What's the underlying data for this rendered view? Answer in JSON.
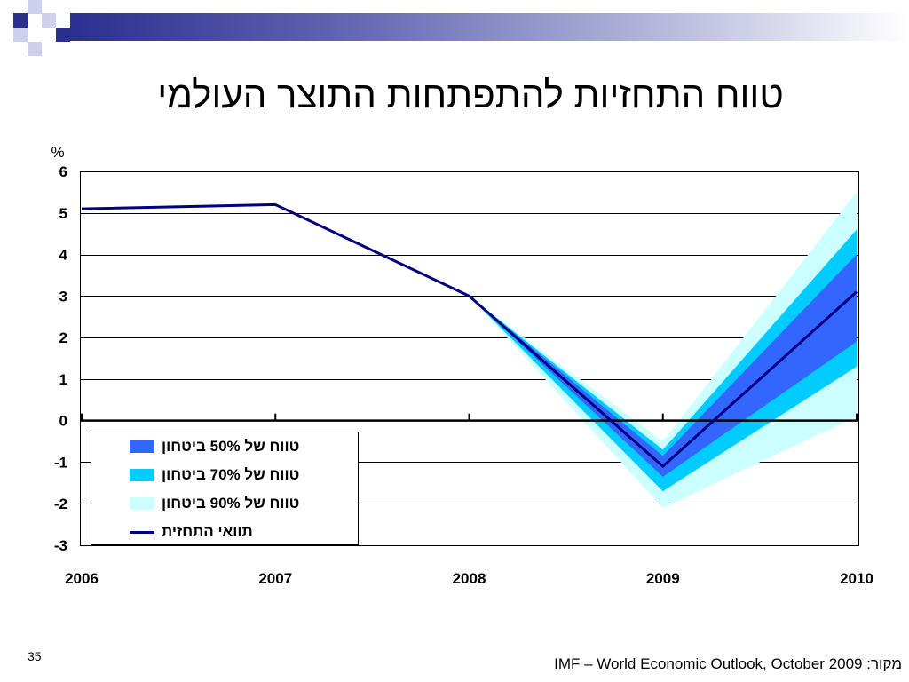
{
  "theme": {
    "accent": "#2b2f8f",
    "accent_light": "#cfd0ee"
  },
  "slide": {
    "title": "טווח התחזיות להתפתחות התוצר העולמי",
    "number": "35",
    "source": "מקור: IMF – World Economic Outlook, October 2009"
  },
  "chart_data": {
    "type": "line",
    "ylabel": "%",
    "x": [
      "2006",
      "2007",
      "2008",
      "2009",
      "2010"
    ],
    "ylim": [
      -3,
      6
    ],
    "yticks": [
      6,
      5,
      4,
      3,
      2,
      1,
      0,
      -1,
      -2,
      -3
    ],
    "grid": true,
    "legend": "bottom-left",
    "series": [
      {
        "name": "תוואי התחזית",
        "values": [
          5.1,
          5.2,
          3.0,
          -1.1,
          3.1
        ],
        "color": "#000080"
      }
    ],
    "bands": [
      {
        "name": "טווח של 50% ביטחון",
        "color": "#3366FF",
        "lower": [
          null,
          null,
          3.0,
          -1.35,
          1.9
        ],
        "upper": [
          null,
          null,
          3.0,
          -0.85,
          4.0
        ]
      },
      {
        "name": "טווח של 70% ביטחון",
        "color": "#00CCFF",
        "lower": [
          null,
          null,
          3.0,
          -1.7,
          1.3
        ],
        "upper": [
          null,
          null,
          3.0,
          -0.7,
          4.6
        ]
      },
      {
        "name": "טווח של 90% ביטחון",
        "color": "#CCFFFF",
        "lower": [
          null,
          null,
          3.0,
          -2.1,
          0.1
        ],
        "upper": [
          null,
          null,
          3.0,
          -0.5,
          5.5
        ]
      }
    ]
  }
}
